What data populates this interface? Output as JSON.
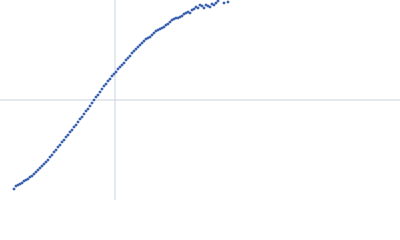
{
  "chart_data": {
    "type": "scatter",
    "color": "#3a62b0",
    "xlim": [
      0,
      400
    ],
    "ylim": [
      0,
      200
    ],
    "crosshair": {
      "x": 115,
      "y": 100
    },
    "x": [
      14,
      16,
      18,
      20,
      22,
      24,
      26,
      28,
      30,
      32,
      34,
      36,
      38,
      40,
      42,
      44,
      46,
      48,
      50,
      52,
      54,
      56,
      58,
      60,
      62,
      64,
      66,
      68,
      70,
      72,
      74,
      76,
      78,
      80,
      82,
      84,
      86,
      88,
      90,
      92,
      94,
      96,
      98,
      100,
      102,
      104,
      106,
      108,
      110,
      112,
      114,
      116,
      118,
      120,
      122,
      124,
      126,
      128,
      130,
      132,
      134,
      136,
      138,
      140,
      142,
      144,
      146,
      148,
      150,
      152,
      154,
      156,
      158,
      160,
      162,
      164,
      166,
      168,
      170,
      172,
      174,
      176,
      178,
      180,
      182,
      184,
      186,
      188,
      190,
      192,
      194,
      196,
      198,
      200,
      202,
      204,
      206,
      208,
      210,
      212,
      214,
      216,
      218,
      224,
      228
    ],
    "y": [
      11,
      14,
      15,
      16,
      17,
      19,
      20,
      21,
      23,
      24,
      26,
      28,
      30,
      32,
      34,
      36,
      38,
      40,
      43,
      45,
      48,
      50,
      53,
      55,
      58,
      60,
      63,
      65,
      68,
      70,
      73,
      75,
      78,
      81,
      83,
      86,
      89,
      91,
      94,
      97,
      100,
      103,
      105,
      108,
      111,
      114,
      116,
      119,
      121,
      124,
      126,
      128,
      131,
      133,
      135,
      137,
      140,
      142,
      144,
      147,
      149,
      151,
      153,
      155,
      157,
      159,
      161,
      162,
      163,
      165,
      167,
      169,
      170,
      171,
      172,
      173,
      175,
      176,
      178,
      180,
      181,
      182,
      182,
      183,
      184,
      186,
      187,
      188,
      187,
      190,
      191,
      193,
      192,
      195,
      194,
      192,
      195,
      194,
      193,
      196,
      195,
      197,
      199,
      197,
      198
    ]
  }
}
